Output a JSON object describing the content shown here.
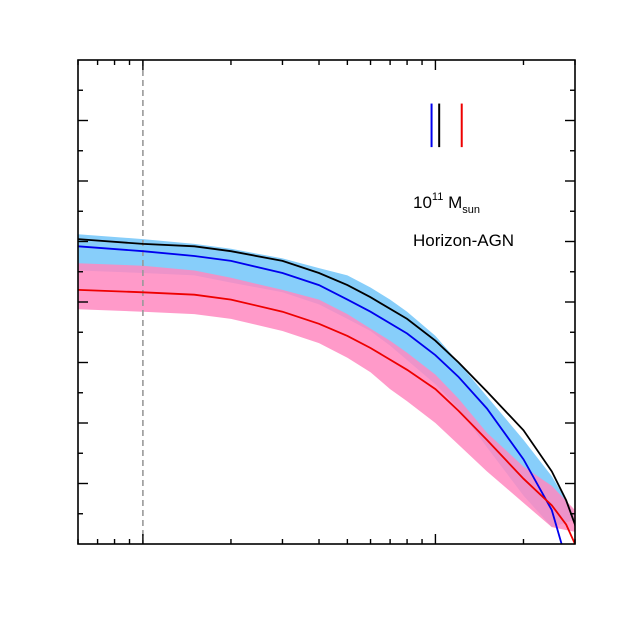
{
  "chart_data": {
    "type": "line",
    "title": "",
    "xlabel": "",
    "ylabel": "",
    "x_scale": "log",
    "xlim": [
      0.6,
      30
    ],
    "ylim": [
      0,
      1
    ],
    "x_major_ticks": [
      1,
      10
    ],
    "x_minor_ticks": [
      0.6,
      0.7,
      0.8,
      0.9,
      2,
      3,
      4,
      5,
      6,
      7,
      8,
      9,
      20,
      30
    ],
    "y_major_ticks": [
      0.125,
      0.25,
      0.375,
      0.5,
      0.625,
      0.75,
      0.875
    ],
    "y_minor_ticks": [
      0.0625,
      0.1875,
      0.3125,
      0.4375,
      0.5625,
      0.6875,
      0.8125,
      0.9375
    ],
    "grid": false,
    "vertical_reference_line": {
      "x": 1.0,
      "style": "dashed",
      "color": "#999999"
    },
    "annotation": {
      "line1_base": "10",
      "line1_sup": "11",
      "line1_unit": " M",
      "line1_sub": "sun",
      "line2": "Horizon-AGN"
    },
    "markers": [
      {
        "x": 9.7,
        "y0": 0.82,
        "y1": 0.91,
        "color": "#0000ee"
      },
      {
        "x": 10.3,
        "y0": 0.82,
        "y1": 0.91,
        "color": "#000000"
      },
      {
        "x": 12.3,
        "y0": 0.82,
        "y1": 0.91,
        "color": "#ee0000"
      }
    ],
    "bands": [
      {
        "color": "#87cefa",
        "x": [
          0.6,
          1.0,
          1.5,
          2.0,
          3.0,
          4.0,
          5.0,
          6.0,
          7.0,
          8.0,
          10.0,
          12.0,
          15.0,
          20.0,
          25.0,
          30.0
        ],
        "upper": [
          0.64,
          0.63,
          0.62,
          0.61,
          0.59,
          0.57,
          0.555,
          0.53,
          0.505,
          0.48,
          0.43,
          0.375,
          0.305,
          0.215,
          0.14,
          0.06
        ],
        "lower": [
          0.565,
          0.56,
          0.555,
          0.54,
          0.52,
          0.495,
          0.465,
          0.44,
          0.41,
          0.38,
          0.33,
          0.28,
          0.2,
          0.1,
          0.035,
          0.05
        ]
      },
      {
        "color": "#ff88c0",
        "x": [
          0.6,
          1.0,
          1.5,
          2.0,
          3.0,
          4.0,
          5.0,
          6.0,
          7.0,
          8.0,
          10.0,
          12.0,
          15.0,
          20.0,
          25.0,
          30.0,
          32.0
        ],
        "upper": [
          0.58,
          0.575,
          0.565,
          0.55,
          0.525,
          0.505,
          0.475,
          0.445,
          0.42,
          0.395,
          0.35,
          0.3,
          0.23,
          0.16,
          0.12,
          0.07,
          0.05
        ],
        "lower": [
          0.485,
          0.48,
          0.475,
          0.465,
          0.44,
          0.415,
          0.385,
          0.355,
          0.32,
          0.295,
          0.25,
          0.205,
          0.15,
          0.085,
          0.035,
          0.025,
          0.05
        ]
      }
    ],
    "series": [
      {
        "color": "#000000",
        "x": [
          0.6,
          1.0,
          1.5,
          2.0,
          3.0,
          4.0,
          5.0,
          6.0,
          8.0,
          10.0,
          12.0,
          15.0,
          20.0,
          25.0,
          28.0,
          30.0,
          31.0
        ],
        "values": [
          0.63,
          0.62,
          0.615,
          0.605,
          0.585,
          0.56,
          0.535,
          0.51,
          0.465,
          0.42,
          0.375,
          0.315,
          0.235,
          0.15,
          0.09,
          0.04,
          0.0
        ]
      },
      {
        "color": "#0000ee",
        "x": [
          0.6,
          1.0,
          1.5,
          2.0,
          3.0,
          4.0,
          5.0,
          6.0,
          8.0,
          10.0,
          12.0,
          15.0,
          20.0,
          25.0,
          27.0
        ],
        "values": [
          0.615,
          0.605,
          0.595,
          0.585,
          0.56,
          0.535,
          0.505,
          0.48,
          0.435,
          0.39,
          0.345,
          0.28,
          0.175,
          0.07,
          0.0
        ]
      },
      {
        "color": "#ee0000",
        "x": [
          0.6,
          1.0,
          1.5,
          2.0,
          3.0,
          4.0,
          5.0,
          6.0,
          8.0,
          10.0,
          12.0,
          15.0,
          20.0,
          25.0,
          28.0,
          30.0
        ],
        "values": [
          0.525,
          0.52,
          0.515,
          0.505,
          0.48,
          0.455,
          0.43,
          0.405,
          0.36,
          0.32,
          0.275,
          0.215,
          0.135,
          0.08,
          0.04,
          0.0
        ]
      }
    ]
  }
}
